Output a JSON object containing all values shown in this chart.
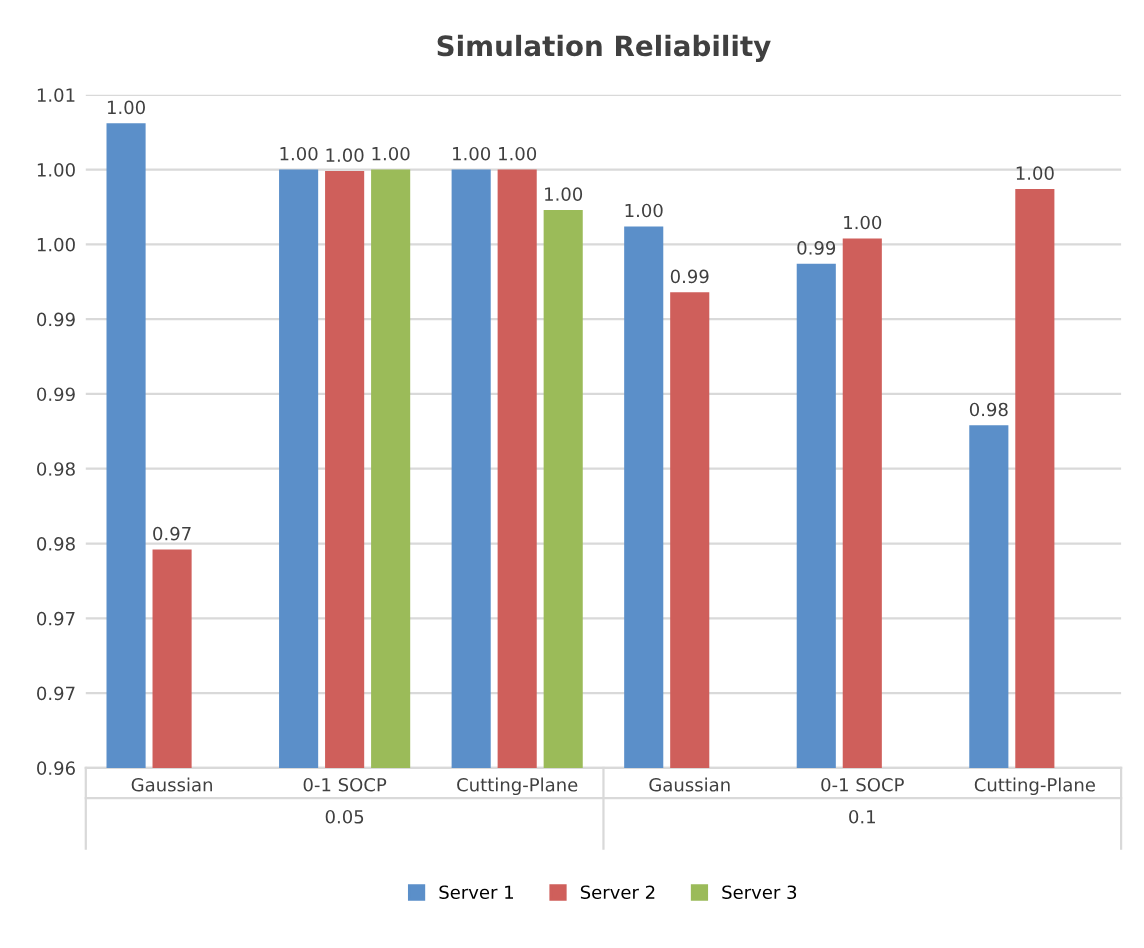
{
  "chart_data": {
    "type": "bar",
    "title": "Simulation Reliability",
    "categories": [
      "Gaussian",
      "0-1 SOCP",
      "Cutting-Plane",
      "Gaussian",
      "0-1 SOCP",
      "Cutting-Plane"
    ],
    "series": [
      {
        "name": "Server 1",
        "color": "#5b8fc9",
        "values": [
          1.0031,
          1.0,
          1.0,
          0.9962,
          0.9937,
          0.9829
        ],
        "value_labels": [
          "1.00",
          "1.00",
          "1.00",
          "1.00",
          "0.99",
          "0.98"
        ]
      },
      {
        "name": "Server 2",
        "color": "#cf5f5b",
        "values": [
          0.9746,
          0.9999,
          1.0,
          0.9918,
          0.9954,
          0.9987
        ],
        "value_labels": [
          "0.97",
          "1.00",
          "1.00",
          "0.99",
          "1.00",
          "1.00"
        ]
      },
      {
        "name": "Server 3",
        "color": "#9bbb59",
        "values": [
          null,
          1.0,
          0.9973,
          null,
          null,
          null
        ],
        "value_labels": [
          null,
          "1.00",
          "1.00",
          null,
          null,
          null
        ]
      }
    ],
    "ylim": [
      0.96,
      1.005
    ],
    "yticks": [
      {
        "value": 0.96,
        "label": "0.96"
      },
      {
        "value": 0.965,
        "label": "0.97"
      },
      {
        "value": 0.97,
        "label": "0.97"
      },
      {
        "value": 0.975,
        "label": "0.98"
      },
      {
        "value": 0.98,
        "label": "0.98"
      },
      {
        "value": 0.985,
        "label": "0.99"
      },
      {
        "value": 0.99,
        "label": "0.99"
      },
      {
        "value": 0.995,
        "label": "1.00"
      },
      {
        "value": 1.0,
        "label": "1.00"
      },
      {
        "value": 1.005,
        "label": "1.01"
      }
    ],
    "annotations": [
      "0.05",
      "0.1"
    ],
    "grid": "y",
    "legend": "bottom"
  }
}
